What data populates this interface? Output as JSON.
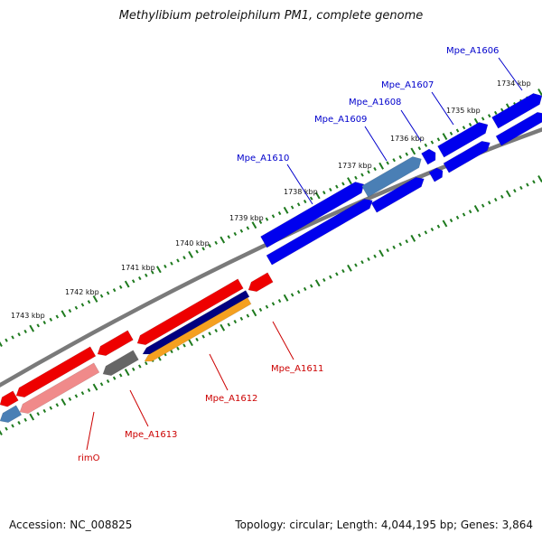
{
  "title": "Methylibium petroleiphilum PM1, complete genome",
  "footer": {
    "accession": "Accession: NC_008825",
    "summary": "Topology: circular; Length: 4,044,195 bp; Genes: 3,864"
  },
  "colors": {
    "backbone": "#7a7a7a",
    "tick": "#1e7a1e",
    "forward_label": "#0000cc",
    "reverse_label": "#cc0000",
    "blue": "#0000ee",
    "steel_blue": "#4a7fb5",
    "red": "#ee0000",
    "pink": "#f08a8a",
    "navy": "#000080",
    "orange": "#f5a020",
    "gray": "#666666"
  },
  "ticks": [
    "1734 kbp",
    "1735 kbp",
    "1736 kbp",
    "1737 kbp",
    "1738 kbp",
    "1739 kbp",
    "1740 kbp",
    "1741 kbp",
    "1742 kbp",
    "1743 kbp"
  ],
  "genes": [
    {
      "label": "Mpe_A1606",
      "strand": "forward",
      "color": "blue"
    },
    {
      "label": "Mpe_A1607",
      "strand": "forward",
      "color": "blue"
    },
    {
      "label": "Mpe_A1608",
      "strand": "forward",
      "color": "blue"
    },
    {
      "label": "Mpe_A1609",
      "strand": "forward",
      "color": "steel_blue"
    },
    {
      "label": "Mpe_A1610",
      "strand": "forward",
      "color": "blue"
    },
    {
      "label": "Mpe_A1611",
      "strand": "reverse",
      "color": "red"
    },
    {
      "label": "Mpe_A1612",
      "strand": "reverse",
      "color": "red"
    },
    {
      "label": "Mpe_A1613",
      "strand": "reverse",
      "color": "red"
    },
    {
      "label": "rimO",
      "strand": "reverse",
      "color": "red"
    }
  ]
}
